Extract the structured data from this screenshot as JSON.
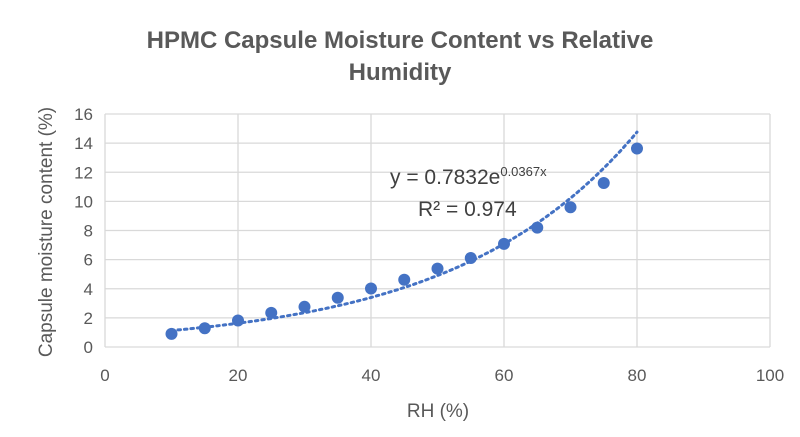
{
  "chart_data": {
    "type": "scatter",
    "title": "HPMC Capsule Moisture Content vs Relative Humidity",
    "title_lines": [
      "HPMC Capsule Moisture Content vs Relative",
      "Humidity"
    ],
    "xlabel": "RH (%)",
    "ylabel": "Capsule moisture content (%)",
    "xlim": [
      0,
      100
    ],
    "ylim": [
      0,
      16
    ],
    "xticks": [
      0,
      20,
      40,
      60,
      80,
      100
    ],
    "yticks": [
      0,
      2,
      4,
      6,
      8,
      10,
      12,
      14,
      16
    ],
    "grid": true,
    "legend": "none",
    "series": [
      {
        "x": [
          10,
          15,
          20,
          25,
          30,
          35,
          40,
          45,
          50,
          55,
          60,
          65,
          70,
          75,
          80
        ],
        "y": [
          0.9,
          1.29,
          1.82,
          2.34,
          2.76,
          3.38,
          4.02,
          4.62,
          5.38,
          6.11,
          7.08,
          8.2,
          9.6,
          11.26,
          13.63
        ],
        "color": "#4472C4"
      }
    ],
    "trendline": {
      "type": "exponential",
      "a": 0.7832,
      "b": 0.0367,
      "x_range": [
        10,
        80
      ],
      "style": "dotted",
      "color": "#4472C4",
      "equation_prefix": "y = 0.7832e",
      "equation_exponent": "0.0367x",
      "r_squared": "R² = 0.974"
    }
  }
}
